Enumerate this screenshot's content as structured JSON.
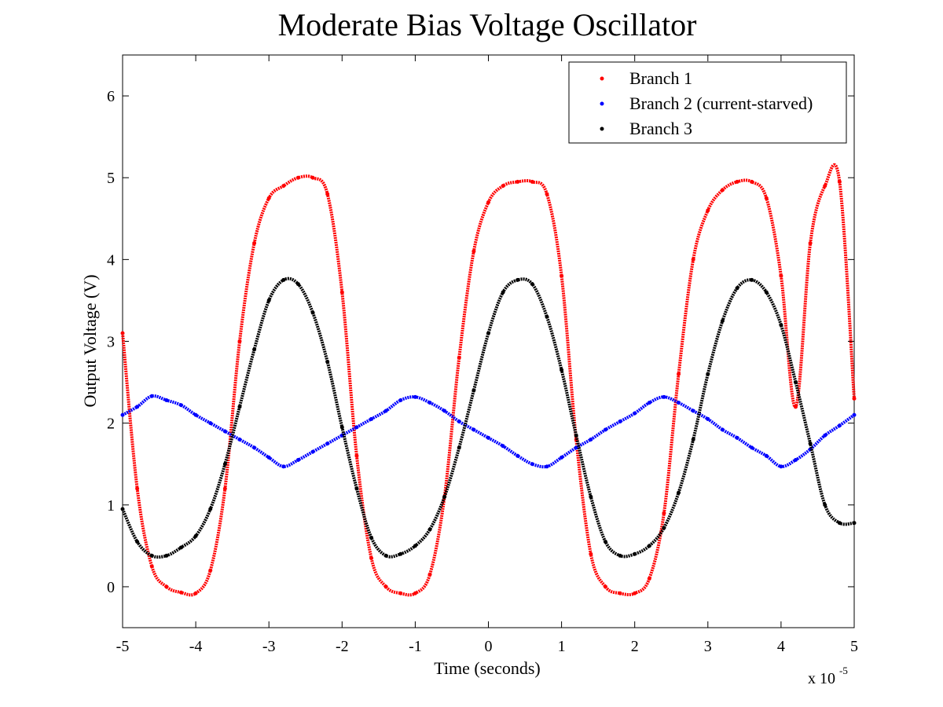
{
  "chart_data": {
    "type": "scatter",
    "title": "Moderate Bias Voltage Oscillator",
    "xlabel": "Time (seconds)",
    "ylabel": "Output Voltage (V)",
    "x_exponent_base": "x 10",
    "x_exponent_power": "-5",
    "xlim": [
      -5,
      5
    ],
    "ylim": [
      -0.5,
      6.5
    ],
    "xticks": [
      -5,
      -4,
      -3,
      -2,
      -1,
      0,
      1,
      2,
      3,
      4,
      5
    ],
    "yticks": [
      0,
      1,
      2,
      3,
      4,
      5,
      6
    ],
    "grid": false,
    "legend_position": "top-right",
    "series": [
      {
        "name": "Branch 1",
        "color": "#ff0000",
        "marker": "dot",
        "x": [
          -5.0,
          -4.8,
          -4.6,
          -4.4,
          -4.2,
          -4.0,
          -3.8,
          -3.6,
          -3.4,
          -3.2,
          -3.0,
          -2.8,
          -2.6,
          -2.4,
          -2.2,
          -2.0,
          -1.8,
          -1.6,
          -1.4,
          -1.2,
          -1.0,
          -0.8,
          -0.6,
          -0.4,
          -0.2,
          0.0,
          0.2,
          0.4,
          0.6,
          0.8,
          1.0,
          1.2,
          1.4,
          1.6,
          1.8,
          2.0,
          2.2,
          2.4,
          2.6,
          2.8,
          3.0,
          3.2,
          3.4,
          3.6,
          3.8,
          4.0,
          4.2,
          4.4,
          4.6,
          4.8,
          5.0
        ],
        "y": [
          3.1,
          1.2,
          0.25,
          0.0,
          -0.07,
          -0.08,
          0.2,
          1.2,
          3.0,
          4.2,
          4.75,
          4.9,
          5.0,
          5.0,
          4.8,
          3.6,
          1.6,
          0.35,
          0.0,
          -0.08,
          -0.08,
          0.15,
          1.1,
          2.8,
          4.1,
          4.7,
          4.9,
          4.95,
          4.95,
          4.8,
          3.8,
          1.8,
          0.4,
          0.0,
          -0.08,
          -0.08,
          0.1,
          0.9,
          2.6,
          4.0,
          4.6,
          4.85,
          4.95,
          4.95,
          4.75,
          3.8,
          2.2,
          4.2,
          4.9,
          4.95,
          2.3
        ]
      },
      {
        "name": "Branch 2 (current-starved)",
        "color": "#0000ff",
        "marker": "dot",
        "x": [
          -5.0,
          -4.8,
          -4.6,
          -4.4,
          -4.2,
          -4.0,
          -3.8,
          -3.6,
          -3.4,
          -3.2,
          -3.0,
          -2.8,
          -2.6,
          -2.4,
          -2.2,
          -2.0,
          -1.8,
          -1.6,
          -1.4,
          -1.2,
          -1.0,
          -0.8,
          -0.6,
          -0.4,
          -0.2,
          0.0,
          0.2,
          0.4,
          0.6,
          0.8,
          1.0,
          1.2,
          1.4,
          1.6,
          1.8,
          2.0,
          2.2,
          2.4,
          2.6,
          2.8,
          3.0,
          3.2,
          3.4,
          3.6,
          3.8,
          4.0,
          4.2,
          4.4,
          4.6,
          4.8,
          5.0
        ],
        "y": [
          2.1,
          2.2,
          2.33,
          2.28,
          2.22,
          2.1,
          2.0,
          1.9,
          1.8,
          1.7,
          1.58,
          1.47,
          1.55,
          1.65,
          1.75,
          1.85,
          1.95,
          2.05,
          2.15,
          2.28,
          2.32,
          2.25,
          2.15,
          2.02,
          1.92,
          1.82,
          1.72,
          1.6,
          1.5,
          1.47,
          1.58,
          1.7,
          1.8,
          1.92,
          2.02,
          2.12,
          2.25,
          2.32,
          2.25,
          2.15,
          2.05,
          1.92,
          1.82,
          1.7,
          1.6,
          1.47,
          1.55,
          1.68,
          1.85,
          1.97,
          2.1
        ]
      },
      {
        "name": "Branch 3",
        "color": "#000000",
        "marker": "dot",
        "x": [
          -5.0,
          -4.8,
          -4.6,
          -4.4,
          -4.2,
          -4.0,
          -3.8,
          -3.6,
          -3.4,
          -3.2,
          -3.0,
          -2.8,
          -2.6,
          -2.4,
          -2.2,
          -2.0,
          -1.8,
          -1.6,
          -1.4,
          -1.2,
          -1.0,
          -0.8,
          -0.6,
          -0.4,
          -0.2,
          0.0,
          0.2,
          0.4,
          0.6,
          0.8,
          1.0,
          1.2,
          1.4,
          1.6,
          1.8,
          2.0,
          2.2,
          2.4,
          2.6,
          2.8,
          3.0,
          3.2,
          3.4,
          3.6,
          3.8,
          4.0,
          4.2,
          4.4,
          4.6,
          4.8,
          5.0
        ],
        "y": [
          0.95,
          0.55,
          0.38,
          0.38,
          0.48,
          0.62,
          0.95,
          1.5,
          2.2,
          2.9,
          3.5,
          3.75,
          3.7,
          3.35,
          2.75,
          1.95,
          1.2,
          0.6,
          0.38,
          0.4,
          0.5,
          0.7,
          1.1,
          1.7,
          2.4,
          3.1,
          3.6,
          3.75,
          3.7,
          3.3,
          2.65,
          1.85,
          1.1,
          0.55,
          0.38,
          0.4,
          0.5,
          0.72,
          1.15,
          1.8,
          2.6,
          3.25,
          3.65,
          3.75,
          3.6,
          3.2,
          2.5,
          1.75,
          1.0,
          0.78,
          0.78
        ]
      }
    ]
  }
}
